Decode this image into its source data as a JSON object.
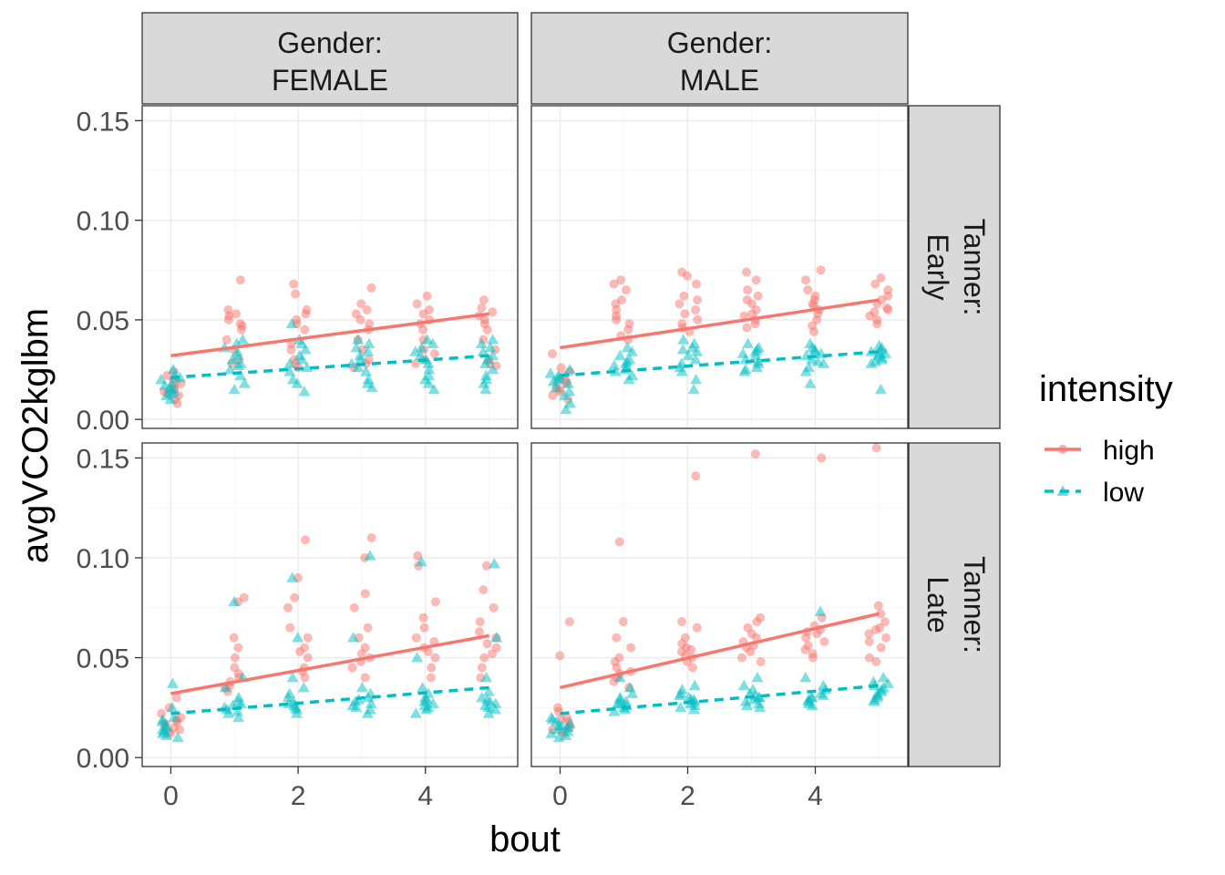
{
  "chart_data": {
    "type": "scatter",
    "xlabel": "bout",
    "ylabel": "avgVCO2kglbm",
    "xlim": [
      -0.45,
      5.45
    ],
    "ylim": [
      -0.0045,
      0.1575
    ],
    "x_ticks": [
      0,
      2,
      4
    ],
    "x_tick_labels": [
      "0",
      "2",
      "4"
    ],
    "y_ticks": [
      0,
      0.05,
      0.1,
      0.15
    ],
    "y_tick_labels": [
      "0.00",
      "0.05",
      "0.10",
      "0.15"
    ],
    "grid": true,
    "col_strips": [
      "Gender:\nFEMALE",
      "Gender:\nMALE"
    ],
    "row_strips": [
      "Tanner:\nEarly",
      "Tanner:\nLate"
    ],
    "legend": {
      "title": "intensity",
      "position": "right",
      "items": [
        {
          "label": "high",
          "color": "#f8766d",
          "shape": "circle",
          "line": "solid"
        },
        {
          "label": "low",
          "color": "#00bfc4",
          "shape": "triangle",
          "line": "dashed"
        }
      ]
    },
    "panels": [
      {
        "row": 0,
        "col": 0,
        "fits": {
          "high": [
            0.032,
            0.053
          ],
          "low": [
            0.021,
            0.032
          ]
        },
        "high": {
          "0": [
            0.024,
            0.022,
            0.02,
            0.018,
            0.016,
            0.015,
            0.014,
            0.012,
            0.01,
            0.008,
            0.019,
            0.013
          ],
          "1": [
            0.07,
            0.055,
            0.053,
            0.052,
            0.05,
            0.048,
            0.047,
            0.045,
            0.04,
            0.035,
            0.03,
            0.028
          ],
          "2": [
            0.068,
            0.063,
            0.055,
            0.053,
            0.05,
            0.048,
            0.045,
            0.038,
            0.035,
            0.03,
            0.028,
            0.026
          ],
          "3": [
            0.066,
            0.058,
            0.055,
            0.053,
            0.05,
            0.048,
            0.045,
            0.04,
            0.035,
            0.03,
            0.028,
            0.026
          ],
          "4": [
            0.062,
            0.058,
            0.055,
            0.053,
            0.05,
            0.048,
            0.045,
            0.04,
            0.035,
            0.033,
            0.03,
            0.028
          ],
          "5": [
            0.06,
            0.056,
            0.054,
            0.052,
            0.05,
            0.048,
            0.045,
            0.04,
            0.035,
            0.03,
            0.028,
            0.027
          ]
        },
        "low": {
          "0": [
            0.025,
            0.022,
            0.02,
            0.018,
            0.016,
            0.015,
            0.014,
            0.012,
            0.01,
            0.021,
            0.017,
            0.013
          ],
          "1": [
            0.04,
            0.038,
            0.036,
            0.034,
            0.032,
            0.03,
            0.028,
            0.027,
            0.025,
            0.022,
            0.018,
            0.015
          ],
          "2": [
            0.048,
            0.04,
            0.038,
            0.035,
            0.032,
            0.03,
            0.028,
            0.026,
            0.024,
            0.02,
            0.018,
            0.014
          ],
          "3": [
            0.04,
            0.038,
            0.036,
            0.034,
            0.032,
            0.03,
            0.028,
            0.026,
            0.024,
            0.02,
            0.018,
            0.016
          ],
          "4": [
            0.04,
            0.038,
            0.036,
            0.034,
            0.032,
            0.03,
            0.028,
            0.025,
            0.022,
            0.02,
            0.018,
            0.015
          ],
          "5": [
            0.04,
            0.038,
            0.036,
            0.034,
            0.032,
            0.03,
            0.028,
            0.025,
            0.022,
            0.02,
            0.018,
            0.015
          ]
        }
      },
      {
        "row": 0,
        "col": 1,
        "fits": {
          "high": [
            0.036,
            0.06
          ],
          "low": [
            0.022,
            0.034
          ]
        },
        "high": {
          "0": [
            0.033,
            0.026,
            0.024,
            0.022,
            0.02,
            0.019,
            0.018,
            0.016,
            0.015,
            0.014,
            0.012,
            0.01
          ],
          "1": [
            0.07,
            0.068,
            0.065,
            0.06,
            0.058,
            0.055,
            0.052,
            0.05,
            0.048,
            0.045,
            0.04,
            0.042
          ],
          "2": [
            0.074,
            0.072,
            0.068,
            0.062,
            0.058,
            0.055,
            0.053,
            0.05,
            0.048,
            0.046,
            0.044,
            0.06
          ],
          "3": [
            0.074,
            0.07,
            0.065,
            0.062,
            0.06,
            0.058,
            0.055,
            0.053,
            0.05,
            0.048,
            0.046,
            0.052
          ],
          "4": [
            0.075,
            0.07,
            0.065,
            0.062,
            0.06,
            0.058,
            0.055,
            0.053,
            0.05,
            0.047,
            0.044,
            0.057
          ],
          "5": [
            0.071,
            0.068,
            0.065,
            0.062,
            0.06,
            0.058,
            0.056,
            0.054,
            0.052,
            0.05,
            0.048,
            0.055
          ]
        },
        "low": {
          "0": [
            0.025,
            0.023,
            0.022,
            0.02,
            0.019,
            0.018,
            0.016,
            0.014,
            0.012,
            0.008,
            0.005,
            0.021
          ],
          "1": [
            0.036,
            0.034,
            0.032,
            0.03,
            0.028,
            0.026,
            0.025,
            0.024,
            0.022,
            0.02,
            0.027,
            0.029
          ],
          "2": [
            0.04,
            0.038,
            0.036,
            0.034,
            0.032,
            0.03,
            0.028,
            0.026,
            0.024,
            0.02,
            0.015,
            0.035
          ],
          "3": [
            0.038,
            0.036,
            0.035,
            0.034,
            0.032,
            0.03,
            0.029,
            0.028,
            0.026,
            0.025,
            0.024,
            0.033
          ],
          "4": [
            0.038,
            0.036,
            0.035,
            0.034,
            0.032,
            0.03,
            0.029,
            0.028,
            0.026,
            0.024,
            0.018,
            0.033
          ],
          "5": [
            0.037,
            0.036,
            0.035,
            0.034,
            0.033,
            0.032,
            0.031,
            0.03,
            0.029,
            0.028,
            0.015,
            0.033
          ]
        }
      },
      {
        "row": 1,
        "col": 0,
        "fits": {
          "high": [
            0.032,
            0.061
          ],
          "low": [
            0.022,
            0.035
          ]
        },
        "high": {
          "0": [
            0.03,
            0.025,
            0.022,
            0.02,
            0.019,
            0.018,
            0.017,
            0.016,
            0.015,
            0.014,
            0.013,
            0.012
          ],
          "1": [
            0.08,
            0.078,
            0.06,
            0.055,
            0.05,
            0.045,
            0.042,
            0.04,
            0.038,
            0.036,
            0.035,
            0.033
          ],
          "2": [
            0.109,
            0.09,
            0.08,
            0.075,
            0.065,
            0.06,
            0.055,
            0.053,
            0.05,
            0.045,
            0.043,
            0.04
          ],
          "3": [
            0.11,
            0.1,
            0.082,
            0.075,
            0.065,
            0.06,
            0.055,
            0.052,
            0.05,
            0.048,
            0.045,
            0.04
          ],
          "4": [
            0.101,
            0.096,
            0.078,
            0.07,
            0.065,
            0.06,
            0.058,
            0.055,
            0.053,
            0.05,
            0.045,
            0.04
          ],
          "5": [
            0.096,
            0.084,
            0.075,
            0.068,
            0.063,
            0.06,
            0.057,
            0.055,
            0.052,
            0.05,
            0.045,
            0.04
          ]
        },
        "low": {
          "0": [
            0.037,
            0.025,
            0.02,
            0.018,
            0.016,
            0.015,
            0.014,
            0.013,
            0.012,
            0.011,
            0.01,
            0.019
          ],
          "1": [
            0.078,
            0.04,
            0.035,
            0.03,
            0.028,
            0.026,
            0.025,
            0.024,
            0.022,
            0.02,
            0.027,
            0.023
          ],
          "2": [
            0.09,
            0.06,
            0.04,
            0.035,
            0.03,
            0.028,
            0.026,
            0.025,
            0.024,
            0.022,
            0.032,
            0.027
          ],
          "3": [
            0.101,
            0.06,
            0.035,
            0.032,
            0.03,
            0.028,
            0.026,
            0.025,
            0.024,
            0.022,
            0.029,
            0.027
          ],
          "4": [
            0.098,
            0.05,
            0.035,
            0.032,
            0.03,
            0.028,
            0.026,
            0.025,
            0.024,
            0.022,
            0.029,
            0.027
          ],
          "5": [
            0.097,
            0.06,
            0.04,
            0.033,
            0.03,
            0.028,
            0.026,
            0.025,
            0.024,
            0.022,
            0.029,
            0.027
          ]
        }
      },
      {
        "row": 1,
        "col": 1,
        "fits": {
          "high": [
            0.035,
            0.072
          ],
          "low": [
            0.022,
            0.036
          ]
        },
        "high": {
          "0": [
            0.068,
            0.051,
            0.025,
            0.023,
            0.02,
            0.019,
            0.018,
            0.016,
            0.015,
            0.014,
            0.013,
            0.012
          ],
          "1": [
            0.108,
            0.068,
            0.06,
            0.055,
            0.05,
            0.048,
            0.045,
            0.043,
            0.04,
            0.038,
            0.035,
            0.042
          ],
          "2": [
            0.141,
            0.068,
            0.065,
            0.06,
            0.057,
            0.055,
            0.053,
            0.051,
            0.05,
            0.048,
            0.045,
            0.054
          ],
          "3": [
            0.152,
            0.07,
            0.068,
            0.065,
            0.06,
            0.058,
            0.056,
            0.055,
            0.053,
            0.05,
            0.048,
            0.062
          ],
          "4": [
            0.15,
            0.07,
            0.066,
            0.064,
            0.062,
            0.06,
            0.058,
            0.056,
            0.054,
            0.052,
            0.05,
            0.063
          ],
          "5": [
            0.155,
            0.076,
            0.072,
            0.068,
            0.065,
            0.062,
            0.06,
            0.058,
            0.055,
            0.05,
            0.048,
            0.064
          ]
        },
        "low": {
          "0": [
            0.02,
            0.019,
            0.018,
            0.017,
            0.016,
            0.015,
            0.014,
            0.013,
            0.012,
            0.011,
            0.01,
            0.016
          ],
          "1": [
            0.04,
            0.035,
            0.032,
            0.03,
            0.028,
            0.027,
            0.026,
            0.025,
            0.024,
            0.023,
            0.029,
            0.027
          ],
          "2": [
            0.036,
            0.034,
            0.032,
            0.03,
            0.029,
            0.028,
            0.027,
            0.026,
            0.025,
            0.024,
            0.031,
            0.029
          ],
          "3": [
            0.04,
            0.036,
            0.034,
            0.032,
            0.03,
            0.029,
            0.028,
            0.027,
            0.026,
            0.025,
            0.031,
            0.03
          ],
          "4": [
            0.073,
            0.04,
            0.036,
            0.034,
            0.032,
            0.03,
            0.029,
            0.028,
            0.027,
            0.026,
            0.031,
            0.03
          ],
          "5": [
            0.04,
            0.038,
            0.036,
            0.034,
            0.033,
            0.032,
            0.031,
            0.03,
            0.029,
            0.028,
            0.037,
            0.035
          ]
        }
      }
    ]
  }
}
